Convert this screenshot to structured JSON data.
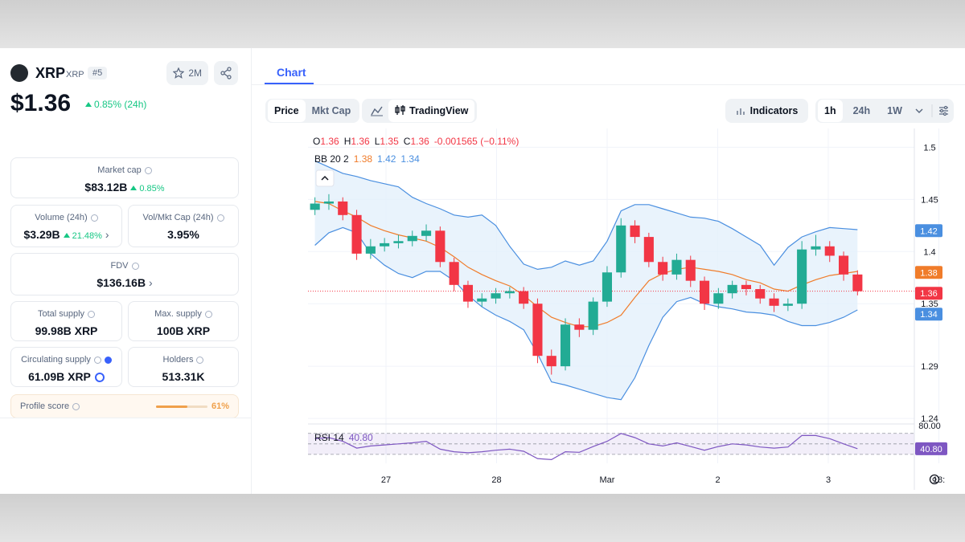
{
  "sidebar": {
    "name": "XRP",
    "symbol": "XRP",
    "rank": "#5",
    "watchers": "2M",
    "price": "$1.36",
    "price_change": "0.85% (24h)",
    "stats": [
      {
        "label": "Market cap",
        "value": "$83.12B",
        "change": "0.85%"
      },
      {
        "label": "Volume (24h)",
        "value": "$3.29B",
        "change": "21.48%"
      },
      {
        "label": "Vol/Mkt Cap (24h)",
        "value": "3.95%"
      },
      {
        "label": "FDV",
        "value": "$136.16B"
      },
      {
        "label": "Total supply",
        "value": "99.98B XRP"
      },
      {
        "label": "Max. supply",
        "value": "100B XRP"
      },
      {
        "label": "Circulating supply",
        "value": "61.09B XRP"
      },
      {
        "label": "Holders",
        "value": "513.31K"
      },
      {
        "label": "Profile score",
        "value": "61%"
      }
    ]
  },
  "tabs": [
    "Chart"
  ],
  "toolbar": {
    "chart_kinds": [
      "Price",
      "Mkt Cap"
    ],
    "tradingview": "TradingView",
    "indicators": "Indicators",
    "ranges": [
      "1h",
      "24h",
      "1W"
    ]
  },
  "chart_data": {
    "type": "candlestick",
    "ohlc_legend": [
      {
        "key": "O",
        "value": 1.36
      },
      {
        "key": "H",
        "value": 1.36
      },
      {
        "key": "L",
        "value": 1.35
      },
      {
        "key": "C",
        "value": 1.36
      }
    ],
    "ohlc_change": "-0.001565 (−0.11%)",
    "up_color": "#22ab94",
    "down_color": "#f23645",
    "open": [
      1.44,
      1.446,
      1.448,
      1.435,
      1.398,
      1.405,
      1.408,
      1.41,
      1.415,
      1.42,
      1.39,
      1.368,
      1.352,
      1.355,
      1.36,
      1.362,
      1.35,
      1.3,
      1.29,
      1.33,
      1.325,
      1.352,
      1.38,
      1.425,
      1.414,
      1.39,
      1.378,
      1.392,
      1.372,
      1.35,
      1.36,
      1.368,
      1.364,
      1.355,
      1.348,
      1.35,
      1.402,
      1.405,
      1.396,
      1.378
    ],
    "high": [
      1.452,
      1.455,
      1.452,
      1.44,
      1.412,
      1.413,
      1.416,
      1.42,
      1.426,
      1.424,
      1.394,
      1.372,
      1.36,
      1.365,
      1.366,
      1.366,
      1.355,
      1.306,
      1.336,
      1.336,
      1.356,
      1.386,
      1.432,
      1.43,
      1.418,
      1.395,
      1.398,
      1.396,
      1.376,
      1.365,
      1.372,
      1.372,
      1.368,
      1.36,
      1.355,
      1.41,
      1.416,
      1.41,
      1.4,
      1.382
    ],
    "low": [
      1.435,
      1.44,
      1.43,
      1.392,
      1.393,
      1.4,
      1.403,
      1.405,
      1.41,
      1.385,
      1.362,
      1.346,
      1.347,
      1.35,
      1.355,
      1.345,
      1.293,
      1.282,
      1.286,
      1.318,
      1.32,
      1.347,
      1.375,
      1.408,
      1.385,
      1.372,
      1.373,
      1.366,
      1.344,
      1.345,
      1.355,
      1.358,
      1.35,
      1.342,
      1.343,
      1.345,
      1.396,
      1.39,
      1.372,
      1.358
    ],
    "close": [
      1.446,
      1.448,
      1.435,
      1.398,
      1.405,
      1.408,
      1.41,
      1.415,
      1.42,
      1.39,
      1.368,
      1.352,
      1.355,
      1.36,
      1.362,
      1.35,
      1.3,
      1.29,
      1.33,
      1.325,
      1.352,
      1.38,
      1.425,
      1.414,
      1.39,
      1.378,
      1.392,
      1.372,
      1.35,
      1.36,
      1.368,
      1.364,
      1.355,
      1.348,
      1.35,
      1.402,
      1.405,
      1.396,
      1.378,
      1.362
    ],
    "bollinger": {
      "label": "BB 20 2",
      "legend_values": [
        1.38,
        1.42,
        1.34
      ],
      "band_color": "#4a8fe0",
      "middle_color": "#f07c2a",
      "fill": "#e3f0fb",
      "upper": [
        1.487,
        1.481,
        1.475,
        1.472,
        1.468,
        1.465,
        1.462,
        1.452,
        1.446,
        1.441,
        1.435,
        1.433,
        1.435,
        1.425,
        1.405,
        1.388,
        1.383,
        1.385,
        1.391,
        1.387,
        1.391,
        1.41,
        1.439,
        1.445,
        1.445,
        1.441,
        1.437,
        1.433,
        1.432,
        1.429,
        1.422,
        1.414,
        1.406,
        1.387,
        1.404,
        1.414,
        1.419,
        1.423,
        1.422,
        1.421
      ],
      "middle": [
        1.448,
        1.446,
        1.439,
        1.433,
        1.425,
        1.42,
        1.416,
        1.413,
        1.41,
        1.404,
        1.395,
        1.385,
        1.378,
        1.372,
        1.367,
        1.358,
        1.347,
        1.337,
        1.332,
        1.328,
        1.328,
        1.332,
        1.339,
        1.356,
        1.372,
        1.379,
        1.383,
        1.385,
        1.383,
        1.381,
        1.378,
        1.373,
        1.37,
        1.364,
        1.362,
        1.368,
        1.373,
        1.377,
        1.379,
        1.381
      ],
      "lower": [
        1.406,
        1.418,
        1.423,
        1.418,
        1.398,
        1.387,
        1.379,
        1.375,
        1.381,
        1.381,
        1.372,
        1.358,
        1.347,
        1.339,
        1.333,
        1.325,
        1.302,
        1.275,
        1.272,
        1.268,
        1.264,
        1.26,
        1.258,
        1.279,
        1.31,
        1.337,
        1.352,
        1.356,
        1.35,
        1.347,
        1.345,
        1.342,
        1.341,
        1.339,
        1.333,
        1.329,
        1.329,
        1.332,
        1.337,
        1.344
      ]
    },
    "price_badges": [
      {
        "value": 1.42,
        "color": "#4a8fe0"
      },
      {
        "value": 1.38,
        "color": "#f07c2a"
      },
      {
        "value": 1.36,
        "color": "#f23645"
      },
      {
        "value": 1.34,
        "color": "#4a8fe0"
      }
    ],
    "ylim": [
      1.237,
      1.518
    ],
    "yticks": [
      1.5,
      1.45,
      1.4,
      1.35,
      1.29,
      1.24
    ],
    "grid": true,
    "xticks": [
      "27",
      "28",
      "Mar",
      "2",
      "3",
      "18:"
    ],
    "rsi": {
      "label": "RSI 14",
      "color": "#7e57c2",
      "ylim": [
        13,
        88
      ],
      "yticks": [
        {
          "value": 80,
          "label": "80.00"
        }
      ],
      "bands": [
        70,
        50,
        30
      ],
      "values": [
        60,
        62,
        55,
        42,
        46,
        48,
        50,
        52,
        55,
        40,
        35,
        33,
        35,
        38,
        40,
        36,
        22,
        20,
        35,
        34,
        45,
        55,
        70,
        62,
        50,
        46,
        52,
        45,
        38,
        45,
        50,
        48,
        44,
        42,
        44,
        66,
        66,
        60,
        50,
        40.8
      ],
      "value_labels": [
        null,
        null,
        null,
        null,
        null,
        null,
        null,
        null,
        null,
        null,
        null,
        null,
        null,
        null,
        null,
        null,
        null,
        null,
        null,
        null,
        null,
        null,
        null,
        null,
        null,
        null,
        null,
        null,
        null,
        null,
        null,
        null,
        null,
        null,
        null,
        null,
        null,
        null,
        null,
        "40.80"
      ]
    }
  }
}
